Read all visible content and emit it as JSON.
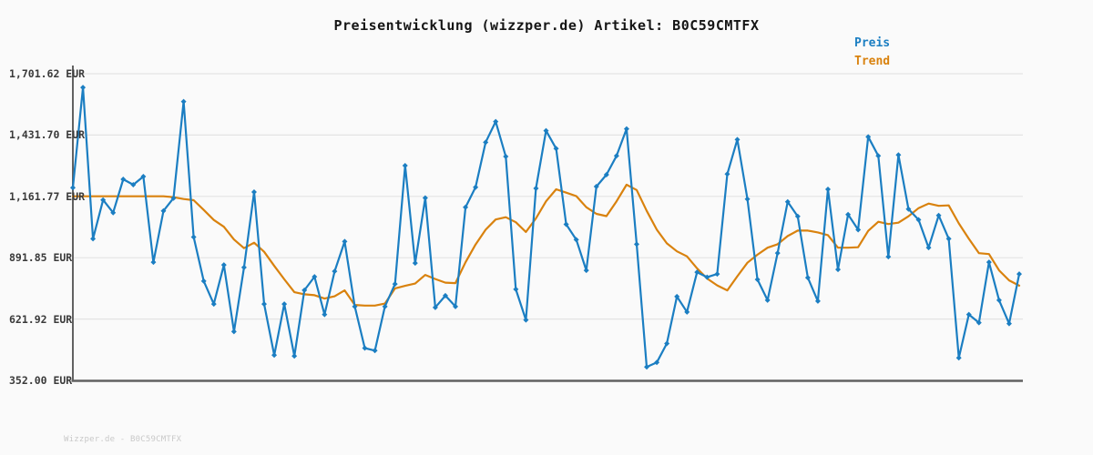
{
  "header": {
    "title": "Preisentwicklung (wizzper.de) Artikel: B0C59CMTFX"
  },
  "legend": {
    "items": [
      {
        "label": "Preis",
        "color": "#1b7ec2"
      },
      {
        "label": "Trend",
        "color": "#d9820e"
      }
    ]
  },
  "watermark": "Wizzper.de - B0C59CMTFX",
  "chart_data": {
    "type": "line",
    "title": "Preisentwicklung (wizzper.de) Artikel: B0C59CMTFX",
    "xlabel": "",
    "ylabel": "EUR",
    "ylim": [
      352.0,
      1701.62
    ],
    "grid": true,
    "legend_position": "top-right",
    "yticks": [
      {
        "value": 1701.62,
        "label": "1,701.62 EUR"
      },
      {
        "value": 1431.7,
        "label": "1,431.70 EUR"
      },
      {
        "value": 1161.77,
        "label": "1,161.77 EUR"
      },
      {
        "value": 891.85,
        "label": "891.85 EUR"
      },
      {
        "value": 621.92,
        "label": "621.92 EUR"
      },
      {
        "value": 352.0,
        "label": "352.00 EUR"
      }
    ],
    "style": {
      "grid_color": "#e3e3e3",
      "axis_color": "#616161",
      "background": "#fafafa"
    },
    "series": [
      {
        "name": "Preis",
        "color": "#1b7ec2",
        "markers": true,
        "values": [
          1200,
          1641,
          975,
          1146,
          1090,
          1237,
          1213,
          1249,
          872,
          1098,
          1154,
          1579,
          983,
          789,
          688,
          860,
          567,
          849,
          1181,
          688,
          463,
          688,
          459,
          749,
          808,
          642,
          832,
          963,
          677,
          494,
          483,
          677,
          776,
          1297,
          868,
          1155,
          673,
          725,
          677,
          1114,
          1202,
          1400,
          1491,
          1337,
          753,
          618,
          1197,
          1451,
          1372,
          1039,
          971,
          836,
          1205,
          1257,
          1340,
          1459,
          951,
          411,
          431,
          514,
          721,
          653,
          828,
          806,
          820,
          1260,
          1412,
          1150,
          796,
          705,
          912,
          1138,
          1074,
          804,
          701,
          1193,
          840,
          1082,
          1015,
          1424,
          1340,
          896,
          1344,
          1106,
          1059,
          936,
          1078,
          975,
          451,
          642,
          606,
          872,
          705,
          602,
          820
        ]
      },
      {
        "name": "Trend",
        "color": "#d9820e",
        "markers": false,
        "values": [
          1162,
          1162,
          1162,
          1162,
          1162,
          1162,
          1162,
          1162,
          1162,
          1162,
          1158,
          1150,
          1145,
          1102,
          1058,
          1028,
          972,
          934,
          958,
          918,
          856,
          797,
          740,
          731,
          727,
          712,
          722,
          748,
          684,
          681,
          681,
          690,
          757,
          768,
          778,
          816,
          798,
          782,
          780,
          872,
          950,
          1015,
          1060,
          1070,
          1048,
          1005,
          1065,
          1140,
          1193,
          1178,
          1163,
          1114,
          1085,
          1075,
          1140,
          1213,
          1190,
          1098,
          1015,
          955,
          920,
          898,
          845,
          800,
          770,
          748,
          810,
          870,
          905,
          936,
          951,
          987,
          1011,
          1011,
          1003,
          991,
          936,
          936,
          938,
          1010,
          1050,
          1040,
          1046,
          1074,
          1110,
          1130,
          1120,
          1122,
          1043,
          975,
          912,
          908,
          836,
          792,
          769
        ]
      }
    ]
  }
}
